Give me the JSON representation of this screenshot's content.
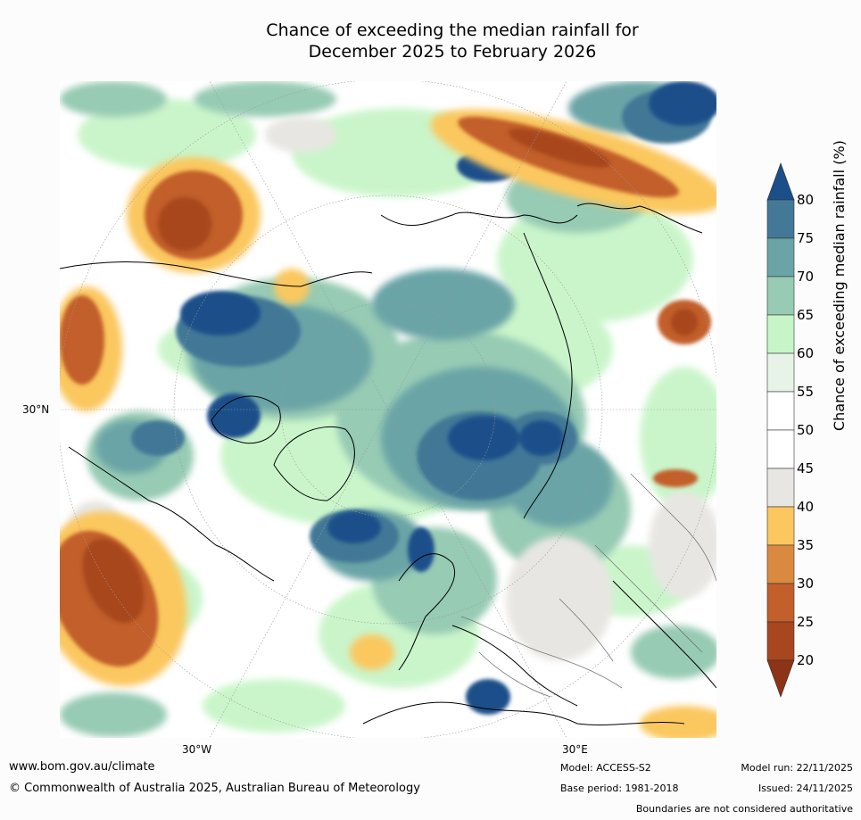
{
  "title_line1": "Chance of exceeding the median rainfall for",
  "title_line2": "December 2025 to February 2026",
  "lat_label": "30°N",
  "lon_labels": [
    "30°W",
    "30°E"
  ],
  "colorbar": {
    "label": "Chance of exceeding median rainfall (%)",
    "ticks": [
      "80",
      "75",
      "70",
      "65",
      "60",
      "55",
      "50",
      "45",
      "40",
      "35",
      "30",
      "25",
      "20"
    ],
    "colors": [
      "#1a4f8a",
      "#437896",
      "#6aa4a6",
      "#97cbb4",
      "#c8f5c8",
      "#e6f3e6",
      "#ffffff",
      "#ffffff",
      "#e8e6e2",
      "#fbc75e",
      "#d98a40",
      "#c25f2a",
      "#a8461f",
      "#8d3317"
    ]
  },
  "footer": {
    "website": "www.bom.gov.au/climate",
    "copyright": "© Commonwealth of Australia 2025, Australian Bureau of Meteorology",
    "model": "Model: ACCESS-S2",
    "base_period": "Base period: 1981-2018",
    "model_run": "Model run: 22/11/2025",
    "issued": "Issued: 24/11/2025",
    "disclaimer": "Boundaries are not considered authoritative"
  },
  "map_colors": {
    "wet_strong": "#1a4f8a",
    "wet": "#437896",
    "wet_mid": "#6aa4a6",
    "wet_light": "#97cbb4",
    "green": "#c8f5c8",
    "neutral": "#ffffff",
    "grey": "#e8e6e2",
    "dry_light": "#fbc75e",
    "dry_mid": "#d98a40",
    "dry": "#c25f2a",
    "dry_strong": "#a8461f"
  }
}
